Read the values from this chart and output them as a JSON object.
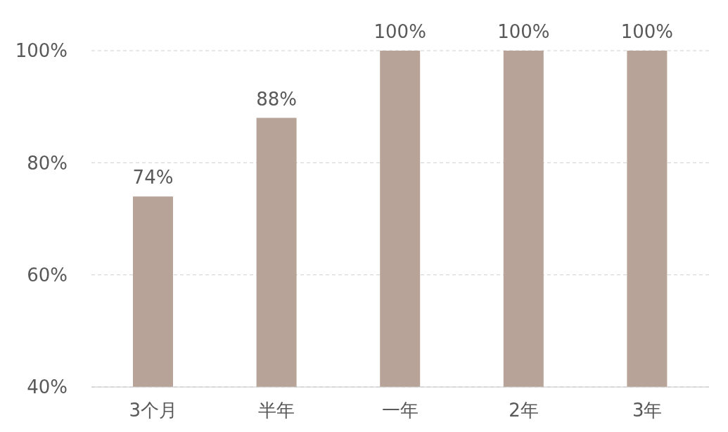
{
  "chart_data": {
    "type": "bar",
    "categories": [
      "3个月",
      "半年",
      "一年",
      "2年",
      "3年"
    ],
    "values": [
      74,
      88,
      100,
      100,
      100
    ],
    "value_labels": [
      "74%",
      "88%",
      "100%",
      "100%",
      "100%"
    ],
    "color": "#b8a398",
    "ylim": [
      40,
      100
    ],
    "yticks": [
      {
        "value": 40,
        "label": "40%"
      },
      {
        "value": 60,
        "label": "60%"
      },
      {
        "value": 80,
        "label": "80%"
      },
      {
        "value": 100,
        "label": "100%"
      }
    ],
    "grid": "y"
  }
}
